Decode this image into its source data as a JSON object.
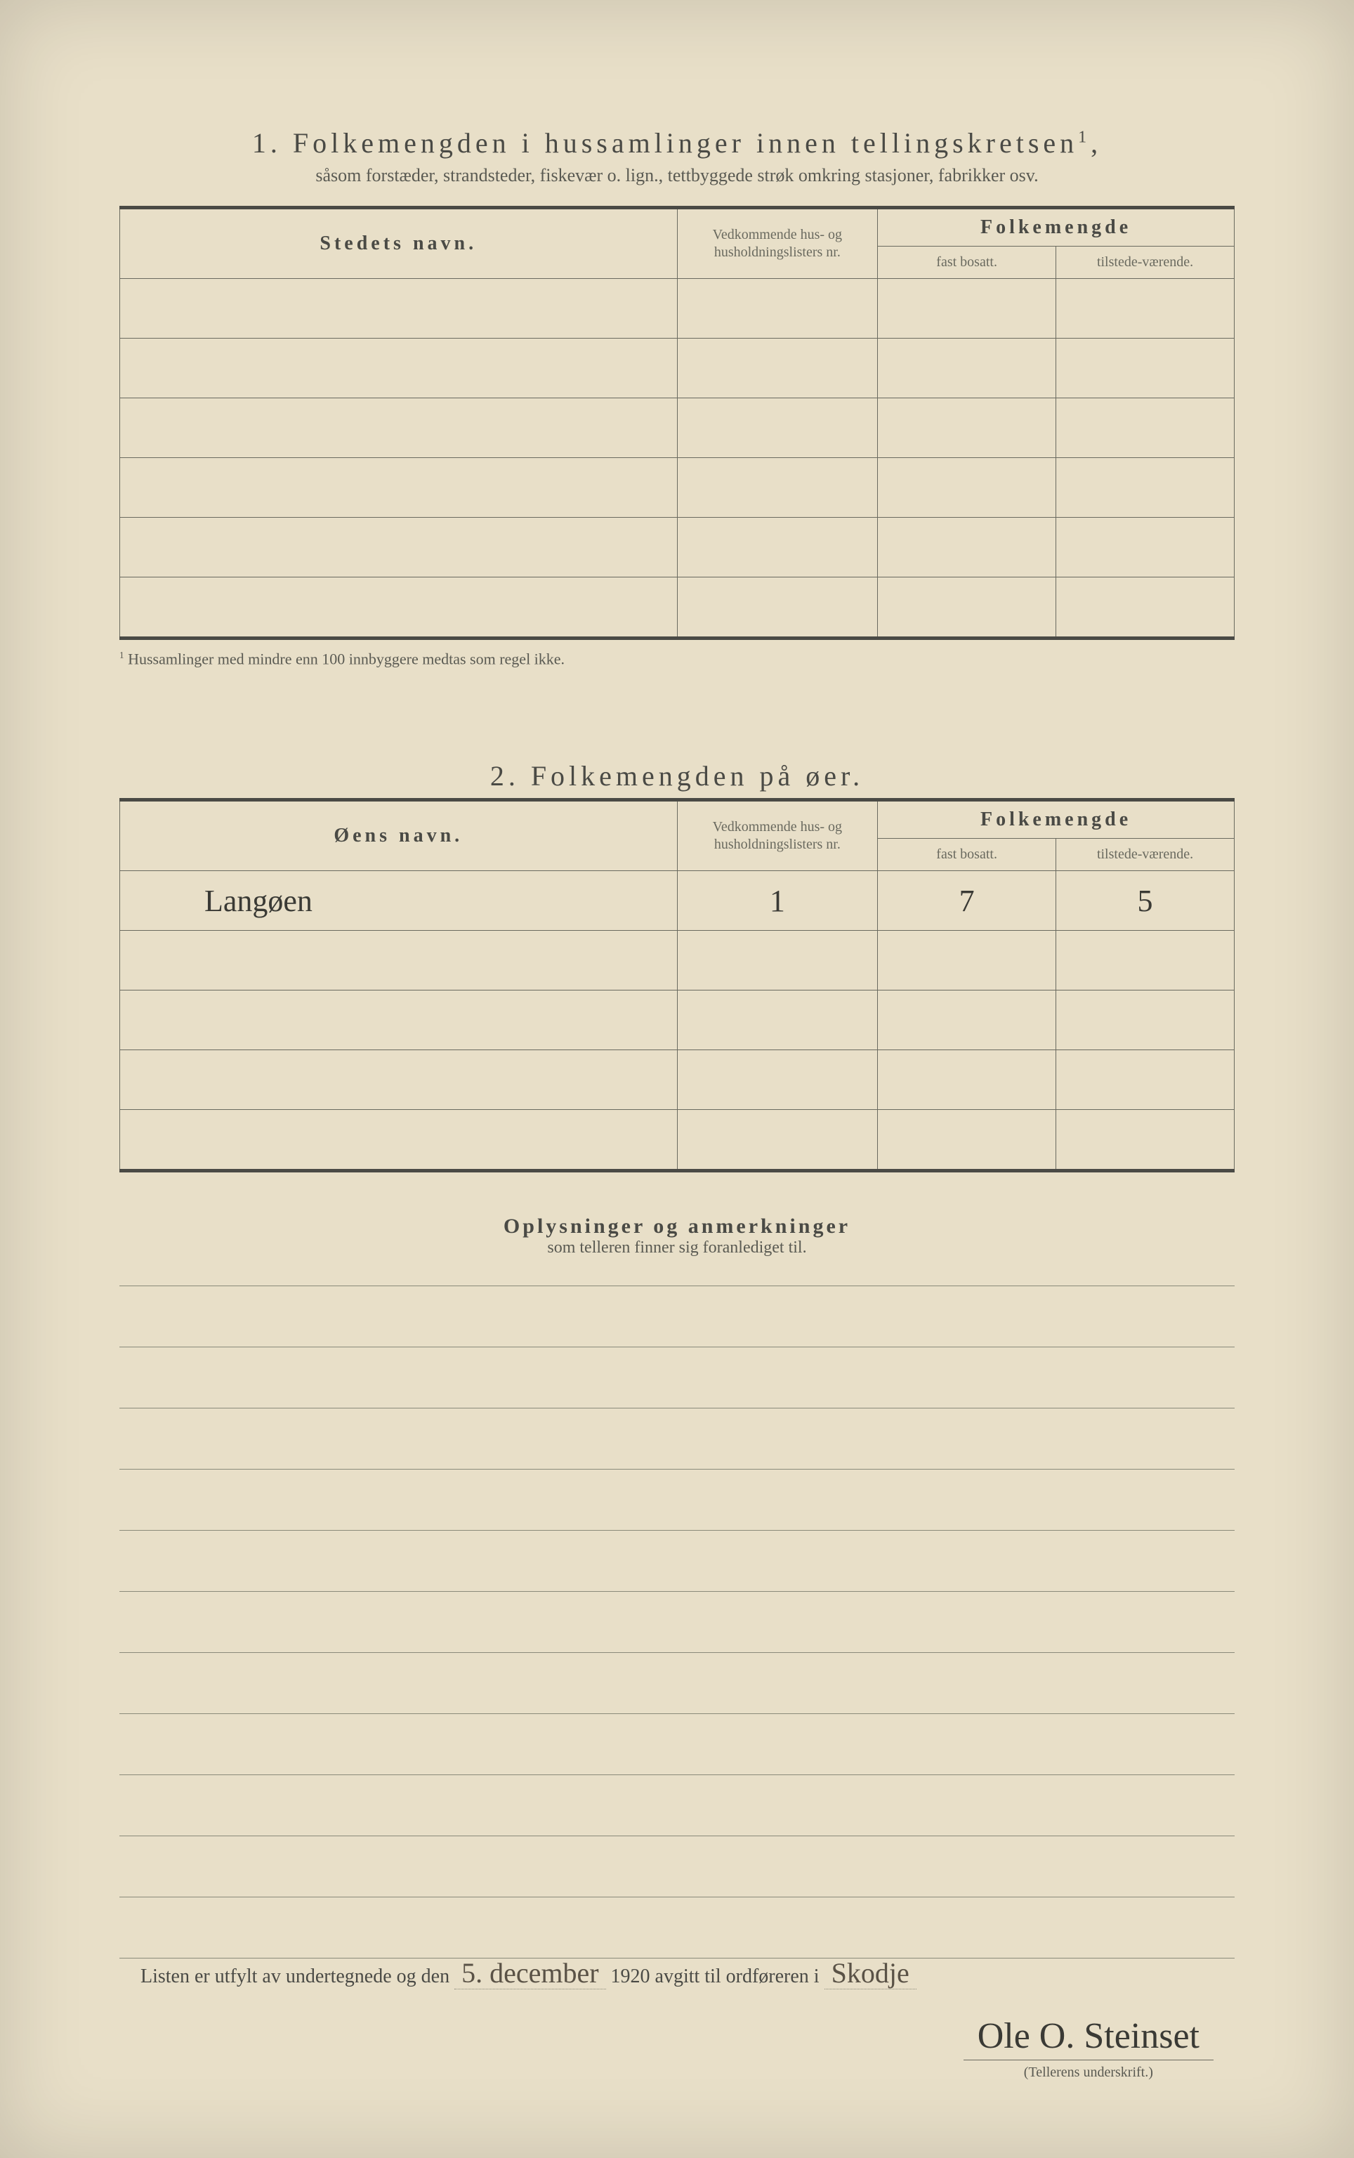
{
  "section1": {
    "number": "1.",
    "title": "Folkemengden i hussamlinger innen tellingskretsen",
    "title_sup": "1",
    "subtitle": "såsom forstæder, strandsteder, fiskevær o. lign., tettbyggede strøk omkring stasjoner, fabrikker osv.",
    "col_name": "Stedets navn.",
    "col_nr": "Vedkommende hus- og husholdningslisters nr.",
    "col_group": "Folkemengde",
    "col_fast": "fast bosatt.",
    "col_til": "tilstede-værende.",
    "footnote_marker": "1",
    "footnote": "Hussamlinger med mindre enn 100 innbyggere medtas som regel ikke."
  },
  "section2": {
    "number": "2.",
    "title": "Folkemengden på øer.",
    "col_name": "Øens navn.",
    "col_nr": "Vedkommende hus- og husholdningslisters nr.",
    "col_group": "Folkemengde",
    "col_fast": "fast bosatt.",
    "col_til": "tilstede-værende.",
    "rows": [
      {
        "name": "Langøen",
        "nr": "1",
        "fast": "7",
        "til": "5"
      }
    ]
  },
  "section3": {
    "title": "Oplysninger og anmerkninger",
    "subtitle": "som telleren finner sig foranlediget til."
  },
  "footer": {
    "prefix": "Listen er utfylt av undertegnede og den",
    "date_hand": "5. december",
    "year": "1920",
    "middle": "avgitt til ordføreren i",
    "place_hand": "Skodje",
    "signature": "Ole O. Steinset",
    "sig_label": "(Tellerens underskrift.)"
  }
}
